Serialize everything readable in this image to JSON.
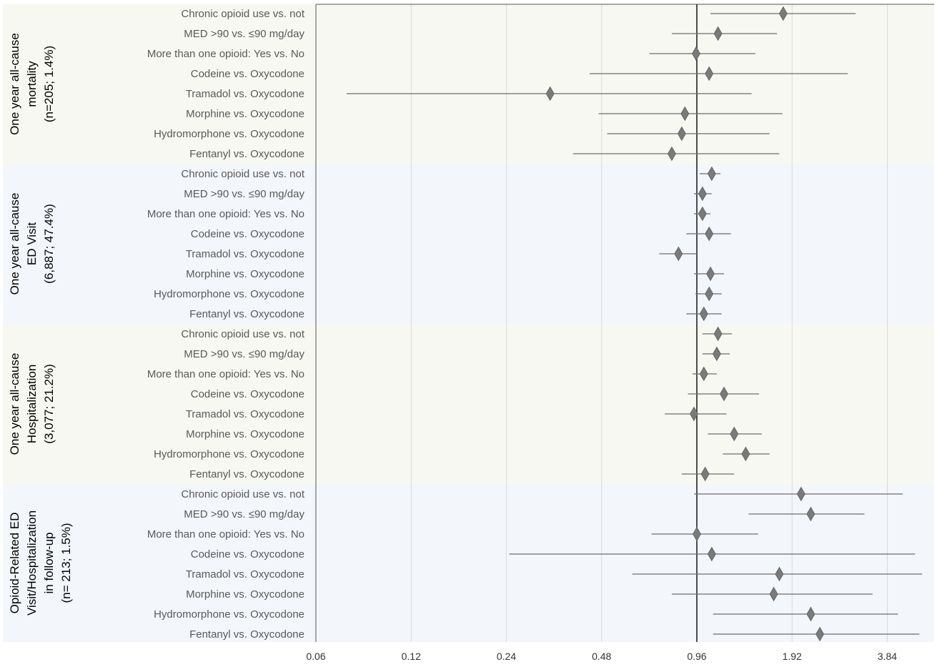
{
  "chart_data": {
    "type": "forest",
    "title": "",
    "xlabel": "",
    "ylabel": "",
    "x_scale": "log2",
    "xlim": [
      0.06,
      5.4
    ],
    "x_ticks": [
      "0.06",
      "0.12",
      "0.24",
      "0.48",
      "0.96",
      "1.92",
      "3.84"
    ],
    "x_tick_values": [
      0.06,
      0.12,
      0.24,
      0.48,
      0.96,
      1.92,
      3.84
    ],
    "reference_line": 0.96,
    "colors": {
      "band_a": "#f7f8f2",
      "band_b": "#f3f6fb",
      "marker": "#7a7a7a",
      "ci_line": "#6e6e6e",
      "reference": "#222222",
      "grid": "#d9d9d9"
    },
    "groups": [
      {
        "label_lines": [
          "One year all-cause",
          "mortality",
          "(n=205; 1.4%)"
        ],
        "band": "band_a",
        "rows": [
          {
            "label": "Chronic opioid use vs. not",
            "est": 1.8,
            "lo": 1.06,
            "hi": 3.05
          },
          {
            "label": "MED >90 vs. ≤90 mg/day",
            "est": 1.12,
            "lo": 0.8,
            "hi": 1.72
          },
          {
            "label": "More than one opioid: Yes vs. No",
            "est": 0.955,
            "lo": 0.68,
            "hi": 1.47
          },
          {
            "label": "Codeine vs. Oxycodone",
            "est": 1.05,
            "lo": 0.44,
            "hi": 2.88
          },
          {
            "label": "Tramadol vs. Oxycodone",
            "est": 0.33,
            "lo": 0.075,
            "hi": 1.43
          },
          {
            "label": "Morphine vs. Oxycodone",
            "est": 0.88,
            "lo": 0.47,
            "hi": 1.79
          },
          {
            "label": "Hydromorphone vs. Oxycodone",
            "est": 0.86,
            "lo": 0.5,
            "hi": 1.63
          },
          {
            "label": "Fentanyl vs. Oxycodone",
            "est": 0.8,
            "lo": 0.39,
            "hi": 1.75
          }
        ]
      },
      {
        "label_lines": [
          "One year all-cause",
          "ED Visit",
          "(6,887; 47.4%)"
        ],
        "band": "band_b",
        "rows": [
          {
            "label": "Chronic opioid use vs. not",
            "est": 1.07,
            "lo": 0.98,
            "hi": 1.14
          },
          {
            "label": "MED >90 vs. ≤90 mg/day",
            "est": 1.0,
            "lo": 0.94,
            "hi": 1.07
          },
          {
            "label": "More than one opioid: Yes vs. No",
            "est": 1.0,
            "lo": 0.94,
            "hi": 1.06
          },
          {
            "label": "Codeine vs. Oxycodone",
            "est": 1.05,
            "lo": 0.89,
            "hi": 1.23
          },
          {
            "label": "Tramadol vs. Oxycodone",
            "est": 0.84,
            "lo": 0.73,
            "hi": 0.96
          },
          {
            "label": "Morphine vs. Oxycodone",
            "est": 1.06,
            "lo": 0.94,
            "hi": 1.17
          },
          {
            "label": "Hydromorphone vs. Oxycodone",
            "est": 1.05,
            "lo": 0.95,
            "hi": 1.15
          },
          {
            "label": "Fentanyl vs. Oxycodone",
            "est": 1.01,
            "lo": 0.89,
            "hi": 1.15
          }
        ]
      },
      {
        "label_lines": [
          "One year all-cause",
          "Hospitalization",
          "(3,077; 21.2%)"
        ],
        "band": "band_a",
        "rows": [
          {
            "label": "Chronic opioid use vs. not",
            "est": 1.12,
            "lo": 1.0,
            "hi": 1.24
          },
          {
            "label": "MED >90 vs. ≤90 mg/day",
            "est": 1.11,
            "lo": 1.0,
            "hi": 1.22
          },
          {
            "label": "More than one opioid: Yes vs. No",
            "est": 1.01,
            "lo": 0.93,
            "hi": 1.11
          },
          {
            "label": "Codeine vs. Oxycodone",
            "est": 1.17,
            "lo": 0.9,
            "hi": 1.51
          },
          {
            "label": "Tramadol vs. Oxycodone",
            "est": 0.94,
            "lo": 0.76,
            "hi": 1.19
          },
          {
            "label": "Morphine vs. Oxycodone",
            "est": 1.26,
            "lo": 1.04,
            "hi": 1.54
          },
          {
            "label": "Hydromorphone vs. Oxycodone",
            "est": 1.37,
            "lo": 1.16,
            "hi": 1.63
          },
          {
            "label": "Fentanyl vs. Oxycodone",
            "est": 1.02,
            "lo": 0.86,
            "hi": 1.26
          }
        ]
      },
      {
        "label_lines": [
          "Opioid-Related ED",
          "Visit/Hospitalization",
          "in follow-up",
          "(n= 213; 1.5%)"
        ],
        "band": "band_b",
        "rows": [
          {
            "label": "Chronic opioid use vs. not",
            "est": 2.05,
            "lo": 0.94,
            "hi": 4.3
          },
          {
            "label": "MED >90 vs. ≤90 mg/day",
            "est": 2.2,
            "lo": 1.4,
            "hi": 3.25
          },
          {
            "label": "More than one opioid: Yes vs. No",
            "est": 0.96,
            "lo": 0.69,
            "hi": 1.5
          },
          {
            "label": "Codeine vs. Oxycodone",
            "est": 1.07,
            "lo": 0.245,
            "hi": 4.7
          },
          {
            "label": "Tramadol vs. Oxycodone",
            "est": 1.75,
            "lo": 0.6,
            "hi": 4.95
          },
          {
            "label": "Morphine vs. Oxycodone",
            "est": 1.68,
            "lo": 0.8,
            "hi": 3.45
          },
          {
            "label": "Hydromorphone vs. Oxycodone",
            "est": 2.2,
            "lo": 1.08,
            "hi": 4.15
          },
          {
            "label": "Fentanyl vs. Oxycodone",
            "est": 2.35,
            "lo": 1.08,
            "hi": 4.85
          }
        ]
      }
    ]
  }
}
